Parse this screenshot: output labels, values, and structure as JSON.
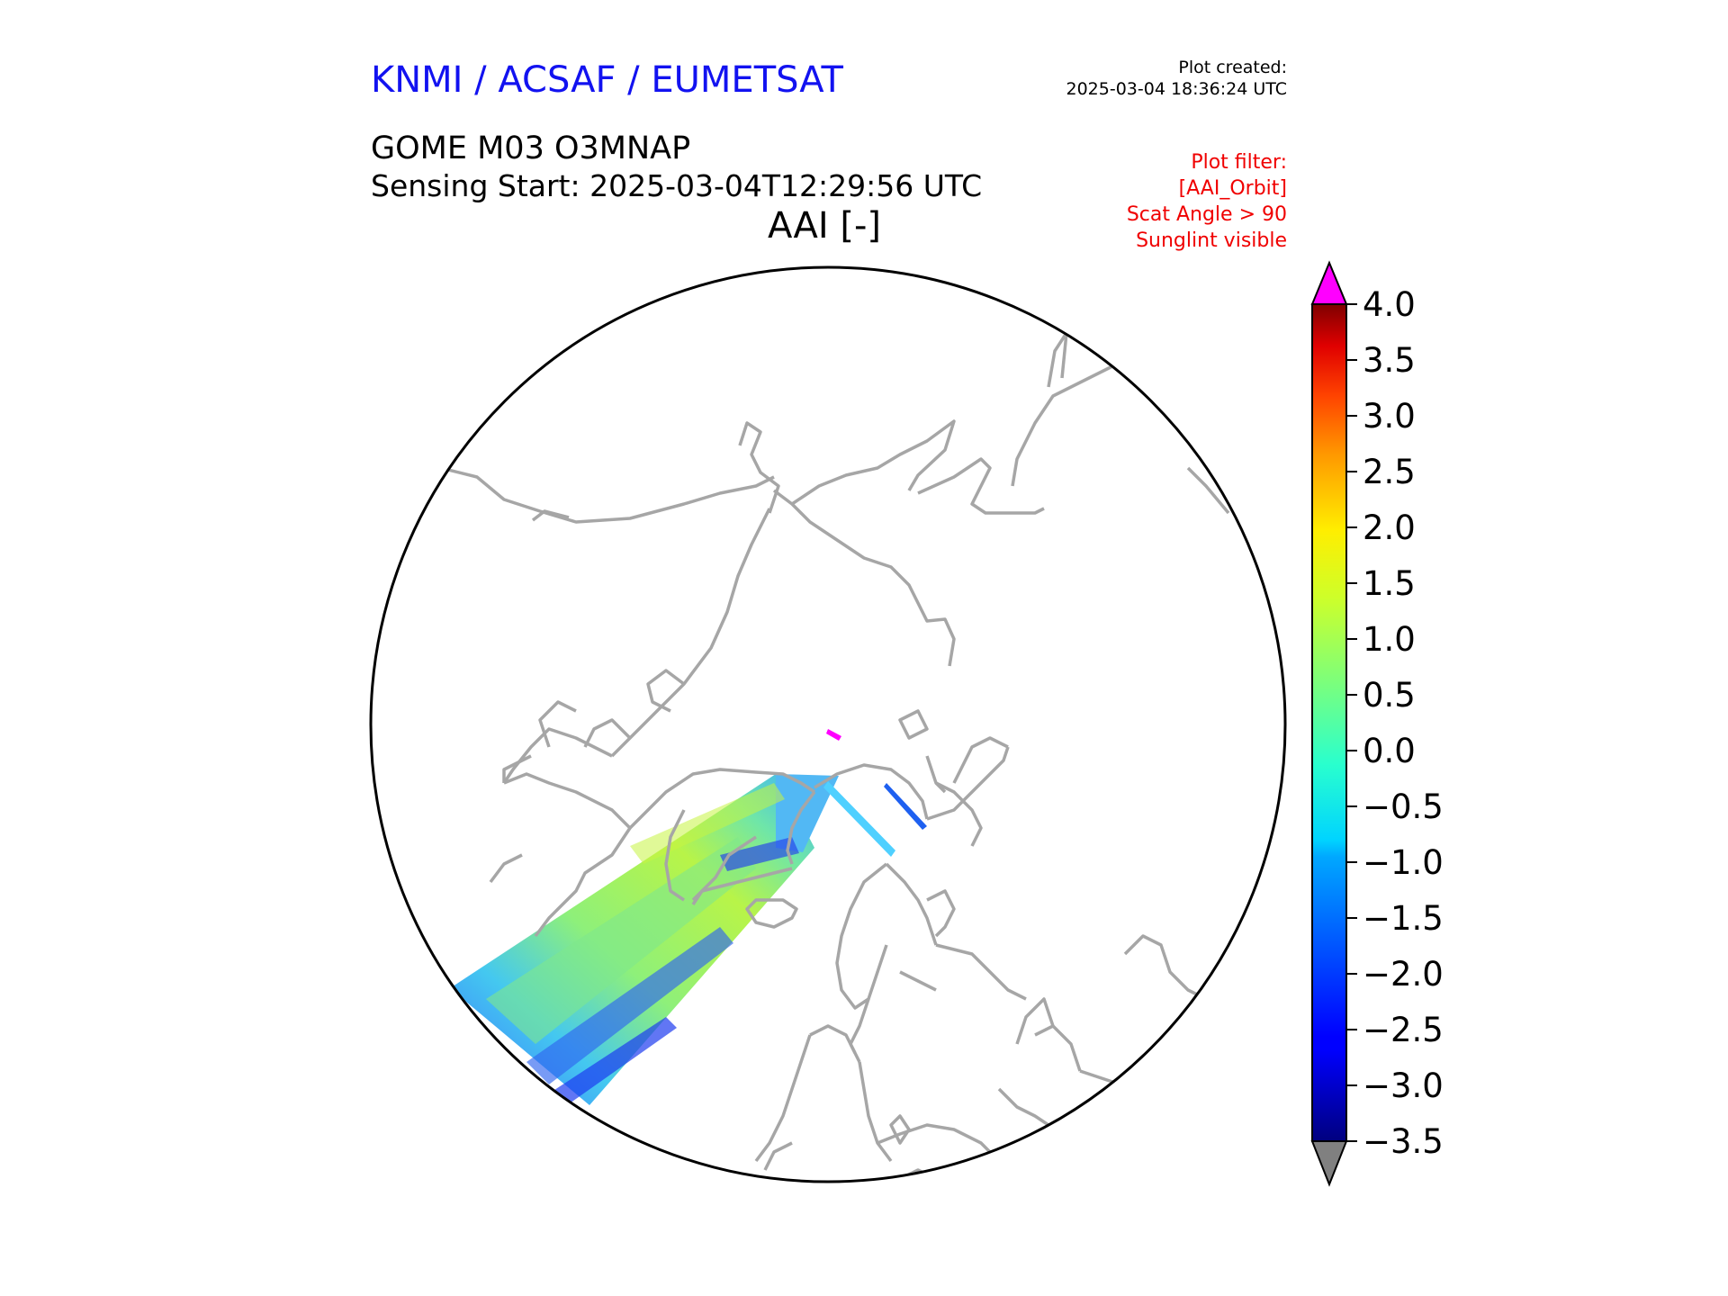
{
  "header": {
    "organization": "KNMI / ACSAF / EUMETSAT",
    "plot_created_label": "Plot created:",
    "plot_created_time": "2025-03-04 18:36:24 UTC",
    "product": "GOME M03 O3MNAP",
    "sensing_start": "Sensing Start: 2025-03-04T12:29:56 UTC",
    "variable_title": "AAI [-]"
  },
  "plot_filter": {
    "lines": [
      "Plot filter:",
      "[AAI_Orbit]",
      "Scat Angle > 90",
      "Sunglint visible"
    ]
  },
  "map": {
    "projection": "north polar stereographic",
    "coastline_color": "#a6a6a6",
    "boundary_color": "#000000",
    "background": "#ffffff"
  },
  "colorbar": {
    "min": -3.5,
    "max": 4.0,
    "ticks": [
      4.0,
      3.5,
      3.0,
      2.5,
      2.0,
      1.5,
      1.0,
      0.5,
      0.0,
      -0.5,
      -1.0,
      -1.5,
      -2.0,
      -2.5,
      -3.0,
      -3.5
    ],
    "tick_labels": [
      "4.0",
      "3.5",
      "3.0",
      "2.5",
      "2.0",
      "1.5",
      "1.0",
      "0.5",
      "0.0",
      "−0.5",
      "−1.0",
      "−1.5",
      "−2.0",
      "−2.5",
      "−3.0",
      "−3.5"
    ],
    "over_color": "#ff00ff",
    "under_color": "#808080",
    "colormap": "jet"
  }
}
